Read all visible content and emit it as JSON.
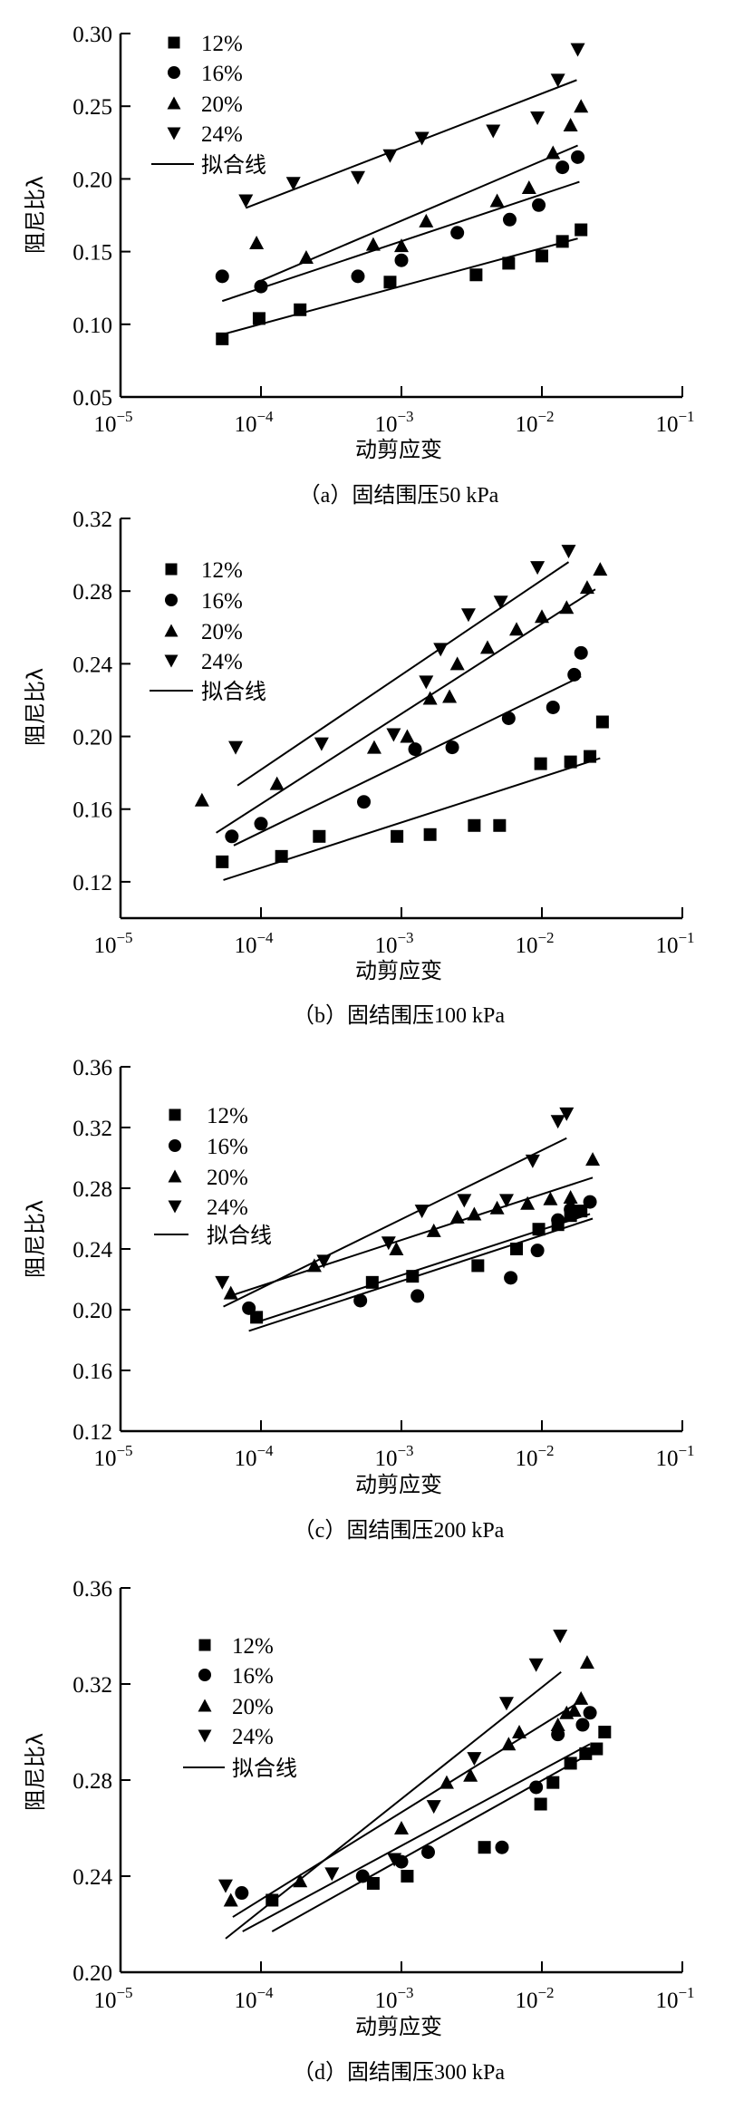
{
  "chart_data": [
    {
      "type": "scatter",
      "caption": "（a）固结围压50 kPa",
      "xlabel": "动剪应变",
      "ylabel": "阻尼比λ",
      "xscale": "log",
      "xlim": [
        1e-05,
        0.1
      ],
      "xticks": [
        {
          "base": "10",
          "exp": "−5"
        },
        {
          "base": "10",
          "exp": "−4"
        },
        {
          "base": "10",
          "exp": "−3"
        },
        {
          "base": "10",
          "exp": "−2"
        },
        {
          "base": "10",
          "exp": "−1"
        }
      ],
      "ylim": [
        0.05,
        0.3
      ],
      "yticks": [
        "0.05",
        "0.10",
        "0.15",
        "0.20",
        "0.25",
        "0.30"
      ],
      "legend_position": "top-left",
      "legend_fit_label": "拟合线",
      "series": [
        {
          "name": "12%",
          "marker": "square",
          "x": [
            5.3e-05,
            9.7e-05,
            0.00019,
            0.00083,
            0.0034,
            0.0058,
            0.01,
            0.014,
            0.019
          ],
          "y": [
            0.09,
            0.104,
            0.11,
            0.129,
            0.134,
            0.142,
            0.147,
            0.157,
            0.165
          ],
          "fit": [
            [
              5.3e-05,
              0.093
            ],
            [
              0.018,
              0.159
            ]
          ]
        },
        {
          "name": "16%",
          "marker": "circle",
          "x": [
            5.3e-05,
            0.0001,
            0.00049,
            0.001,
            0.0025,
            0.0059,
            0.0095,
            0.014,
            0.018
          ],
          "y": [
            0.133,
            0.126,
            0.133,
            0.144,
            0.163,
            0.172,
            0.182,
            0.208,
            0.215
          ],
          "fit": [
            [
              5.3e-05,
              0.116
            ],
            [
              0.0185,
              0.198
            ]
          ]
        },
        {
          "name": "20%",
          "marker": "triangle-up",
          "x": [
            9.3e-05,
            0.00021,
            0.00063,
            0.001,
            0.0015,
            0.0048,
            0.0081,
            0.012,
            0.016,
            0.019
          ],
          "y": [
            0.156,
            0.146,
            0.155,
            0.154,
            0.171,
            0.185,
            0.194,
            0.218,
            0.237,
            0.25
          ],
          "fit": [
            [
              0.0001,
              0.13
            ],
            [
              0.018,
              0.223
            ]
          ]
        },
        {
          "name": "24%",
          "marker": "triangle-down",
          "x": [
            7.8e-05,
            0.00017,
            0.00049,
            0.00083,
            0.0014,
            0.0045,
            0.0093,
            0.013,
            0.018
          ],
          "y": [
            0.185,
            0.197,
            0.201,
            0.216,
            0.228,
            0.233,
            0.242,
            0.268,
            0.289
          ],
          "fit": [
            [
              7.8e-05,
              0.18
            ],
            [
              0.0177,
              0.268
            ]
          ]
        }
      ]
    },
    {
      "type": "scatter",
      "caption": "（b）固结围压100 kPa",
      "xlabel": "动剪应变",
      "ylabel": "阻尼比λ",
      "xscale": "log",
      "xlim": [
        1e-05,
        0.1
      ],
      "xticks": [
        {
          "base": "10",
          "exp": "−5"
        },
        {
          "base": "10",
          "exp": "−4"
        },
        {
          "base": "10",
          "exp": "−3"
        },
        {
          "base": "10",
          "exp": "−2"
        },
        {
          "base": "10",
          "exp": "−1"
        }
      ],
      "ylim": [
        0.1,
        0.32
      ],
      "yticks": [
        "0.12",
        "0.16",
        "0.20",
        "0.24",
        "0.28",
        "0.32"
      ],
      "legend_position": "top-left",
      "legend_fit_label": "拟合线",
      "series": [
        {
          "name": "12%",
          "marker": "square",
          "x": [
            5.3e-05,
            0.00014,
            0.00026,
            0.00093,
            0.0016,
            0.0033,
            0.005,
            0.0098,
            0.016,
            0.022,
            0.027
          ],
          "y": [
            0.131,
            0.134,
            0.145,
            0.145,
            0.146,
            0.151,
            0.151,
            0.185,
            0.186,
            0.189,
            0.208
          ],
          "fit": [
            [
              5.4e-05,
              0.121
            ],
            [
              0.026,
              0.188
            ]
          ]
        },
        {
          "name": "16%",
          "marker": "circle",
          "x": [
            6.2e-05,
            0.0001,
            0.00054,
            0.00125,
            0.0023,
            0.0058,
            0.012,
            0.017,
            0.019
          ],
          "y": [
            0.145,
            0.152,
            0.164,
            0.193,
            0.194,
            0.21,
            0.216,
            0.234,
            0.246
          ],
          "fit": [
            [
              6.4e-05,
              0.14
            ],
            [
              0.019,
              0.233
            ]
          ]
        },
        {
          "name": "20%",
          "marker": "triangle-up",
          "x": [
            3.8e-05,
            0.00013,
            0.00064,
            0.0011,
            0.0016,
            0.0022,
            0.0025,
            0.0041,
            0.0066,
            0.01,
            0.015,
            0.021,
            0.026
          ],
          "y": [
            0.165,
            0.174,
            0.194,
            0.2,
            0.221,
            0.222,
            0.24,
            0.249,
            0.259,
            0.266,
            0.271,
            0.282,
            0.292
          ],
          "fit": [
            [
              4.8e-05,
              0.147
            ],
            [
              0.024,
              0.281
            ]
          ]
        },
        {
          "name": "24%",
          "marker": "triangle-down",
          "x": [
            6.6e-05,
            0.00027,
            0.00088,
            0.0015,
            0.0019,
            0.003,
            0.0051,
            0.0093,
            0.0155
          ],
          "y": [
            0.194,
            0.196,
            0.201,
            0.23,
            0.248,
            0.267,
            0.274,
            0.293,
            0.302
          ],
          "fit": [
            [
              6.8e-05,
              0.173
            ],
            [
              0.0155,
              0.296
            ]
          ]
        }
      ]
    },
    {
      "type": "scatter",
      "caption": "（c）固结围压200 kPa",
      "xlabel": "动剪应变",
      "ylabel": "阻尼比λ",
      "xscale": "log",
      "xlim": [
        1e-05,
        0.1
      ],
      "xticks": [
        {
          "base": "10",
          "exp": "−5"
        },
        {
          "base": "10",
          "exp": "−4"
        },
        {
          "base": "10",
          "exp": "−3"
        },
        {
          "base": "10",
          "exp": "−2"
        },
        {
          "base": "10",
          "exp": "−1"
        }
      ],
      "ylim": [
        0.12,
        0.36
      ],
      "yticks": [
        "0.12",
        "0.16",
        "0.20",
        "0.24",
        "0.28",
        "0.32",
        "0.36"
      ],
      "legend_position": "top-left",
      "legend_fit_label": "拟合线",
      "series": [
        {
          "name": "12%",
          "marker": "square",
          "x": [
            9.3e-05,
            0.00062,
            0.0012,
            0.0035,
            0.0066,
            0.0095,
            0.013,
            0.016,
            0.019
          ],
          "y": [
            0.195,
            0.218,
            0.222,
            0.229,
            0.24,
            0.253,
            0.256,
            0.262,
            0.265
          ],
          "fit": [
            [
              9.5e-05,
              0.192
            ],
            [
              0.022,
              0.263
            ]
          ]
        },
        {
          "name": "16%",
          "marker": "circle",
          "x": [
            8.2e-05,
            0.00051,
            0.0013,
            0.006,
            0.0093,
            0.013,
            0.016,
            0.022
          ],
          "y": [
            0.201,
            0.206,
            0.209,
            0.221,
            0.239,
            0.259,
            0.266,
            0.271
          ],
          "fit": [
            [
              8.2e-05,
              0.186
            ],
            [
              0.023,
              0.26
            ]
          ]
        },
        {
          "name": "20%",
          "marker": "triangle-up",
          "x": [
            6.1e-05,
            0.00024,
            0.00092,
            0.0017,
            0.0025,
            0.0033,
            0.0048,
            0.0079,
            0.0115,
            0.016,
            0.023
          ],
          "y": [
            0.211,
            0.229,
            0.24,
            0.252,
            0.261,
            0.263,
            0.267,
            0.27,
            0.273,
            0.274,
            0.299
          ],
          "fit": [
            [
              6e-05,
              0.209
            ],
            [
              0.023,
              0.287
            ]
          ]
        },
        {
          "name": "24%",
          "marker": "triangle-down",
          "x": [
            5.3e-05,
            0.00028,
            0.00081,
            0.0014,
            0.0028,
            0.0056,
            0.0086,
            0.013,
            0.015
          ],
          "y": [
            0.218,
            0.232,
            0.244,
            0.265,
            0.272,
            0.272,
            0.298,
            0.324,
            0.329
          ],
          "fit": [
            [
              5.4e-05,
              0.202
            ],
            [
              0.015,
              0.313
            ]
          ]
        }
      ]
    },
    {
      "type": "scatter",
      "caption": "（d）固结围压300 kPa",
      "xlabel": "动剪应变",
      "ylabel": "阻尼比λ",
      "xscale": "log",
      "xlim": [
        1e-05,
        0.1
      ],
      "xticks": [
        {
          "base": "10",
          "exp": "−5"
        },
        {
          "base": "10",
          "exp": "−4"
        },
        {
          "base": "10",
          "exp": "−3"
        },
        {
          "base": "10",
          "exp": "−2"
        },
        {
          "base": "10",
          "exp": "−1"
        }
      ],
      "ylim": [
        0.2,
        0.36
      ],
      "yticks": [
        "0.20",
        "0.24",
        "0.28",
        "0.32",
        "0.36"
      ],
      "legend_position": "top-left",
      "legend_fit_label": "拟合线",
      "series": [
        {
          "name": "12%",
          "marker": "square",
          "x": [
            0.00012,
            0.00063,
            0.0011,
            0.0039,
            0.0098,
            0.012,
            0.016,
            0.0205,
            0.0245,
            0.028
          ],
          "y": [
            0.23,
            0.237,
            0.24,
            0.252,
            0.27,
            0.279,
            0.287,
            0.291,
            0.293,
            0.3
          ],
          "fit": [
            [
              0.00012,
              0.217
            ],
            [
              0.022,
              0.291
            ]
          ]
        },
        {
          "name": "16%",
          "marker": "circle",
          "x": [
            7.3e-05,
            0.00053,
            0.001,
            0.00155,
            0.0052,
            0.0091,
            0.013,
            0.0195,
            0.022
          ],
          "y": [
            0.233,
            0.24,
            0.246,
            0.25,
            0.252,
            0.277,
            0.299,
            0.303,
            0.308
          ],
          "fit": [
            [
              7.4e-05,
              0.217
            ],
            [
              0.022,
              0.295
            ]
          ]
        },
        {
          "name": "20%",
          "marker": "triangle-up",
          "x": [
            6.1e-05,
            0.00019,
            0.001,
            0.0021,
            0.0031,
            0.0058,
            0.0069,
            0.013,
            0.015,
            0.017,
            0.019,
            0.021
          ],
          "y": [
            0.23,
            0.238,
            0.26,
            0.279,
            0.282,
            0.295,
            0.3,
            0.303,
            0.308,
            0.309,
            0.314,
            0.329
          ],
          "fit": [
            [
              6.3e-05,
              0.223
            ],
            [
              0.019,
              0.313
            ]
          ]
        },
        {
          "name": "24%",
          "marker": "triangle-down",
          "x": [
            5.6e-05,
            0.00032,
            0.00089,
            0.0017,
            0.0033,
            0.0056,
            0.0091,
            0.0135
          ],
          "y": [
            0.236,
            0.241,
            0.247,
            0.269,
            0.289,
            0.312,
            0.328,
            0.34
          ],
          "fit": [
            [
              5.6e-05,
              0.214
            ],
            [
              0.0137,
              0.325
            ]
          ]
        }
      ]
    }
  ]
}
